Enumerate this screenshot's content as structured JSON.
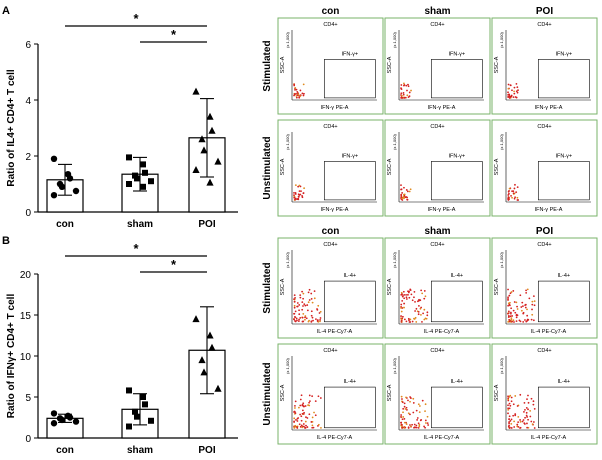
{
  "panels": [
    {
      "letter": "A",
      "chart_data": {
        "type": "bar",
        "ylabel": "Ratio of IL4+ CD4+ T cell",
        "categories": [
          "con",
          "sham",
          "POI"
        ],
        "values": [
          1.15,
          1.35,
          2.65
        ],
        "errors": [
          0.55,
          0.6,
          1.4
        ],
        "ylim": [
          0,
          6
        ],
        "yticks": [
          0,
          2,
          4,
          6
        ],
        "points": [
          [
            1.9,
            1.35,
            1.2,
            1.0,
            0.9,
            0.75,
            0.6
          ],
          [
            1.95,
            1.7,
            1.4,
            1.3,
            1.2,
            1.1,
            1.0,
            0.9
          ],
          [
            4.3,
            3.4,
            2.9,
            2.6,
            2.2,
            1.8,
            1.5,
            1.05
          ]
        ],
        "markers": [
          "circle",
          "square",
          "triangle"
        ],
        "significance": [
          {
            "from": 0,
            "to": 2,
            "label": "*"
          },
          {
            "from": 1,
            "to": 2,
            "label": "*"
          }
        ]
      },
      "flow": {
        "columns": [
          "con",
          "sham",
          "POI"
        ],
        "rows": [
          "Stimulated",
          "Unstimulated"
        ],
        "top_label": "CD4+",
        "gate_label": "IFN-γ+",
        "x_axis": "IFN-γ PE-A",
        "y_axis": "SSC-A",
        "y_tick": "(x 1,000)"
      }
    },
    {
      "letter": "B",
      "chart_data": {
        "type": "bar",
        "ylabel": "Ratio of IFNγ+ CD4+ T cell",
        "categories": [
          "con",
          "sham",
          "POI"
        ],
        "values": [
          2.4,
          3.5,
          10.7
        ],
        "errors": [
          0.5,
          1.9,
          5.3
        ],
        "ylim": [
          0,
          20
        ],
        "yticks": [
          0,
          5,
          10,
          15,
          20
        ],
        "points": [
          [
            3.0,
            2.7,
            2.5,
            2.4,
            2.2,
            2.0,
            1.8
          ],
          [
            5.8,
            5.0,
            4.1,
            3.2,
            2.6,
            2.1,
            1.4
          ],
          [
            14.5,
            12.5,
            11.0,
            9.5,
            8.0,
            6.0
          ]
        ],
        "markers": [
          "circle",
          "square",
          "triangle"
        ],
        "significance": [
          {
            "from": 0,
            "to": 2,
            "label": "*"
          },
          {
            "from": 1,
            "to": 2,
            "label": "*"
          }
        ]
      },
      "flow": {
        "columns": [
          "con",
          "sham",
          "POI"
        ],
        "rows": [
          "Stimulated",
          "Unstimulated"
        ],
        "top_label": "CD4+",
        "gate_label": "IL-4+",
        "x_axis": "IL-4 PE-Cy7-A",
        "y_axis": "SSC-A",
        "y_tick": "(x 1,000)"
      }
    }
  ]
}
